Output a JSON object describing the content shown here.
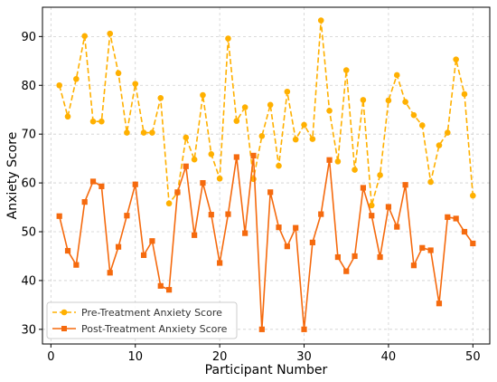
{
  "chart_data": {
    "type": "line",
    "title": "",
    "xlabel": "Participant Number",
    "ylabel": "Anxiety Score",
    "xlim": [
      -1,
      52
    ],
    "ylim": [
      27,
      96
    ],
    "xticks": [
      0,
      10,
      20,
      30,
      40,
      50
    ],
    "yticks": [
      30,
      40,
      50,
      60,
      70,
      80,
      90
    ],
    "grid": true,
    "legend_position": "lower-left",
    "x": [
      1,
      2,
      3,
      4,
      5,
      6,
      7,
      8,
      9,
      10,
      11,
      12,
      13,
      14,
      15,
      16,
      17,
      18,
      19,
      20,
      21,
      22,
      23,
      24,
      25,
      26,
      27,
      28,
      29,
      30,
      31,
      32,
      33,
      34,
      35,
      36,
      37,
      38,
      39,
      40,
      41,
      42,
      43,
      44,
      45,
      46,
      47,
      48,
      49,
      50
    ],
    "series": [
      {
        "name": "Pre-Treatment Anxiety Score",
        "color": "#FFB000",
        "marker": "circle",
        "linestyle": "dashed",
        "values": [
          80.0,
          73.6,
          81.3,
          90.1,
          72.6,
          72.6,
          90.6,
          82.5,
          70.3,
          80.3,
          70.3,
          70.3,
          77.4,
          55.8,
          58.0,
          69.3,
          64.8,
          78.0,
          65.9,
          60.9,
          89.6,
          72.7,
          75.5,
          60.8,
          69.6,
          76.0,
          63.5,
          78.7,
          68.9,
          71.9,
          69.0,
          93.3,
          74.8,
          64.4,
          83.1,
          62.7,
          77.0,
          55.4,
          61.6,
          76.9,
          82.1,
          76.6,
          73.9,
          71.8,
          60.2,
          67.7,
          70.3,
          85.3,
          78.2,
          57.4
        ]
      },
      {
        "name": "Post-Treatment Anxiety Score",
        "color": "#F56A0E",
        "marker": "square",
        "linestyle": "solid",
        "values": [
          53.2,
          46.1,
          43.2,
          56.1,
          60.3,
          59.3,
          41.6,
          46.9,
          53.3,
          59.7,
          45.2,
          48.1,
          38.9,
          38.1,
          58.1,
          63.4,
          49.3,
          60.0,
          53.5,
          43.6,
          53.6,
          65.3,
          49.7,
          65.6,
          30.0,
          58.1,
          50.9,
          47.0,
          50.8,
          30.0,
          47.8,
          53.6,
          64.7,
          44.8,
          41.9,
          45.0,
          59.0,
          53.3,
          44.8,
          55.1,
          51.0,
          59.6,
          43.1,
          46.7,
          46.2,
          35.3,
          53.0,
          52.7,
          50.0,
          47.6
        ]
      }
    ]
  }
}
